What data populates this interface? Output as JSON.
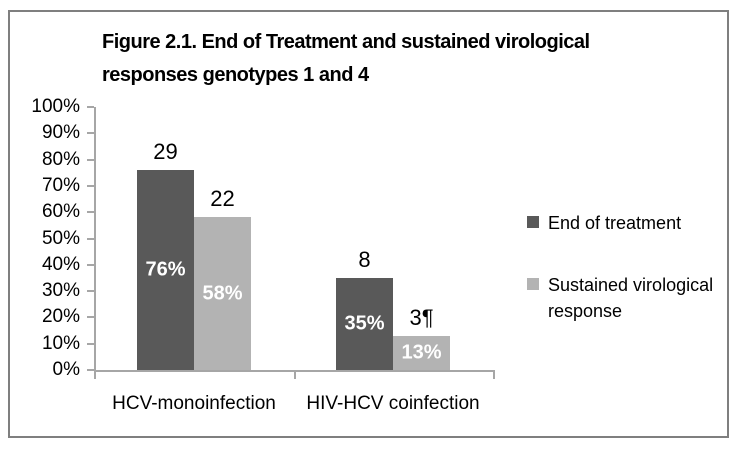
{
  "chart_data": {
    "type": "bar",
    "title": "Figure 2.1. End of Treatment and sustained virological responses genotypes 1 and 4",
    "title_lines": [
      "Figure 2.1. End of Treatment and sustained virological",
      "responses genotypes 1 and 4"
    ],
    "categories": [
      "HCV-monoinfection",
      "HIV-HCV coinfection"
    ],
    "series": [
      {
        "name": "End of treatment",
        "color": "#595959",
        "values": [
          76,
          35
        ],
        "value_labels": [
          "76%",
          "35%"
        ],
        "count_labels": [
          "29",
          "8"
        ]
      },
      {
        "name": "Sustained virological response",
        "color": "#b3b3b3",
        "values": [
          58,
          13
        ],
        "value_labels": [
          "58%",
          "13%"
        ],
        "count_labels": [
          "22",
          "3¶"
        ]
      }
    ],
    "ylim": [
      0,
      100
    ],
    "ytick_step": 10,
    "ytick_labels": [
      "0%",
      "10%",
      "20%",
      "30%",
      "40%",
      "50%",
      "60%",
      "70%",
      "80%",
      "90%",
      "100%"
    ],
    "legend_position": "right",
    "grid": false,
    "bar_label_color": "#ffffff",
    "axis_color": "#a6a6a6",
    "frame_border_color": "#7f7f7f",
    "text_color": "#000000"
  }
}
